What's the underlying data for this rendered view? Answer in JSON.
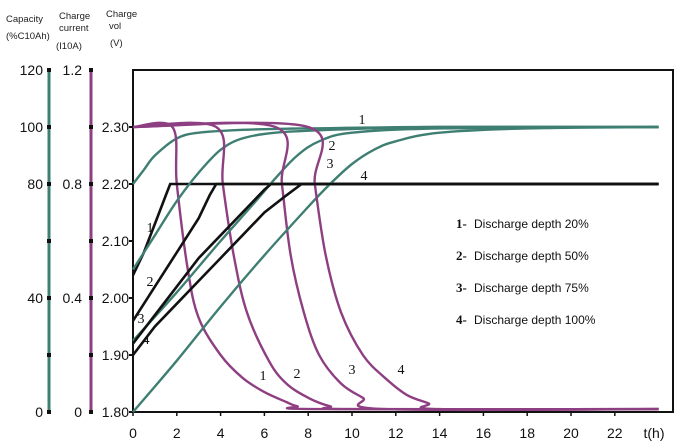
{
  "chart_data": {
    "type": "line",
    "axis_headers": {
      "capacity": [
        "Capacity",
        "(%C10Ah)"
      ],
      "current": [
        "Charge",
        "current",
        "(I10A)"
      ],
      "voltage": [
        "Charge",
        "vol",
        "(V)"
      ]
    },
    "xlabel": "t(h)",
    "x_ticks": [
      0,
      2,
      4,
      6,
      8,
      10,
      12,
      14,
      16,
      18,
      20,
      22
    ],
    "xlim": [
      0,
      24.5
    ],
    "capacity_ticks": [
      {
        "v": 0,
        "label": "0"
      },
      {
        "v": 20,
        "label": ""
      },
      {
        "v": 40,
        "label": "40"
      },
      {
        "v": 60,
        "label": ""
      },
      {
        "v": 80,
        "label": "80"
      },
      {
        "v": 100,
        "label": "100"
      },
      {
        "v": 120,
        "label": "120"
      }
    ],
    "current_ticks": [
      {
        "v": 0,
        "label": "0"
      },
      {
        "v": 0.2,
        "label": ""
      },
      {
        "v": 0.4,
        "label": "0.4"
      },
      {
        "v": 0.6,
        "label": ""
      },
      {
        "v": 0.8,
        "label": "0.8"
      },
      {
        "v": 1.0,
        "label": ""
      },
      {
        "v": 1.2,
        "label": "1.2"
      }
    ],
    "voltage_ticks": [
      {
        "v": 1.8,
        "label": "1.80"
      },
      {
        "v": 1.9,
        "label": "1.90"
      },
      {
        "v": 2.0,
        "label": "2.00"
      },
      {
        "v": 2.1,
        "label": "2.10"
      },
      {
        "v": 2.2,
        "label": "2.20"
      },
      {
        "v": 2.3,
        "label": "2.30"
      }
    ],
    "voltage_lim": [
      1.8,
      2.4
    ],
    "colors": {
      "capacity": "#3f7f73",
      "current": "#8e3f82",
      "voltage": "#111111"
    },
    "series": [
      {
        "name": "Discharge depth 20%",
        "number": "1",
        "voltage": [
          [
            0,
            2.04
          ],
          [
            0.5,
            2.08
          ],
          [
            1,
            2.13
          ],
          [
            1.5,
            2.18
          ],
          [
            1.7,
            2.2
          ],
          [
            24,
            2.2
          ]
        ],
        "current": [
          [
            0,
            1.0
          ],
          [
            1.8,
            1.0
          ],
          [
            2.0,
            0.8
          ],
          [
            2.5,
            0.5
          ],
          [
            3.0,
            0.33
          ],
          [
            4.0,
            0.2
          ],
          [
            5.0,
            0.12
          ],
          [
            6.0,
            0.07
          ],
          [
            7.0,
            0.035
          ],
          [
            7.5,
            0.02
          ],
          [
            8.5,
            0.01
          ],
          [
            24,
            0.01
          ]
        ],
        "capacity": [
          [
            0,
            80
          ],
          [
            0.5,
            85
          ],
          [
            1,
            90
          ],
          [
            2,
            96
          ],
          [
            3,
            98
          ],
          [
            5,
            99
          ],
          [
            8,
            99.5
          ],
          [
            14,
            100
          ],
          [
            24,
            100
          ]
        ]
      },
      {
        "name": "Discharge depth 50%",
        "number": "2",
        "voltage": [
          [
            0,
            1.96
          ],
          [
            1,
            2.02
          ],
          [
            2,
            2.08
          ],
          [
            3,
            2.14
          ],
          [
            3.5,
            2.18
          ],
          [
            3.8,
            2.2
          ],
          [
            24,
            2.2
          ]
        ],
        "current": [
          [
            0,
            1.0
          ],
          [
            3.8,
            1.0
          ],
          [
            4.1,
            0.8
          ],
          [
            4.6,
            0.55
          ],
          [
            5.2,
            0.35
          ],
          [
            6.2,
            0.18
          ],
          [
            7.0,
            0.1
          ],
          [
            8.0,
            0.05
          ],
          [
            9.0,
            0.02
          ],
          [
            10.0,
            0.01
          ],
          [
            24,
            0.01
          ]
        ],
        "capacity": [
          [
            0,
            50
          ],
          [
            1,
            62
          ],
          [
            2,
            74
          ],
          [
            3,
            84
          ],
          [
            4,
            92
          ],
          [
            5,
            96
          ],
          [
            6.5,
            98
          ],
          [
            9,
            99
          ],
          [
            14,
            100
          ],
          [
            24,
            100
          ]
        ]
      },
      {
        "name": "Discharge depth 75%",
        "number": "3",
        "voltage": [
          [
            0,
            1.92
          ],
          [
            1,
            1.97
          ],
          [
            2,
            2.02
          ],
          [
            3,
            2.07
          ],
          [
            4,
            2.11
          ],
          [
            5,
            2.15
          ],
          [
            6,
            2.19
          ],
          [
            6.3,
            2.2
          ],
          [
            24,
            2.2
          ]
        ],
        "current": [
          [
            0,
            1.0
          ],
          [
            6.5,
            1.0
          ],
          [
            6.8,
            0.8
          ],
          [
            7.2,
            0.55
          ],
          [
            7.8,
            0.35
          ],
          [
            8.5,
            0.2
          ],
          [
            9.5,
            0.1
          ],
          [
            10.5,
            0.05
          ],
          [
            11.5,
            0.01
          ],
          [
            24,
            0.01
          ]
        ],
        "capacity": [
          [
            0,
            25
          ],
          [
            2,
            42
          ],
          [
            4,
            60
          ],
          [
            5.5,
            73
          ],
          [
            6.5,
            82
          ],
          [
            7.5,
            90
          ],
          [
            8.5,
            95
          ],
          [
            10,
            98
          ],
          [
            14,
            99.5
          ],
          [
            24,
            100
          ]
        ]
      },
      {
        "name": "Discharge depth 100%",
        "number": "4",
        "voltage": [
          [
            0,
            1.9
          ],
          [
            1,
            1.95
          ],
          [
            2,
            1.99
          ],
          [
            3,
            2.03
          ],
          [
            4,
            2.07
          ],
          [
            5,
            2.11
          ],
          [
            6,
            2.15
          ],
          [
            7,
            2.18
          ],
          [
            7.7,
            2.2
          ],
          [
            24,
            2.2
          ]
        ],
        "current": [
          [
            0,
            1.0
          ],
          [
            8.0,
            1.0
          ],
          [
            8.3,
            0.8
          ],
          [
            8.8,
            0.55
          ],
          [
            9.5,
            0.35
          ],
          [
            10.5,
            0.2
          ],
          [
            11.5,
            0.12
          ],
          [
            12.5,
            0.06
          ],
          [
            13.5,
            0.03
          ],
          [
            14.0,
            0.01
          ],
          [
            24,
            0.01
          ]
        ],
        "capacity": [
          [
            0,
            0
          ],
          [
            2,
            18
          ],
          [
            4,
            37
          ],
          [
            6,
            55
          ],
          [
            8,
            72
          ],
          [
            9,
            80
          ],
          [
            10,
            87
          ],
          [
            11,
            92
          ],
          [
            12,
            95
          ],
          [
            14,
            98
          ],
          [
            18,
            99.5
          ],
          [
            24,
            100
          ]
        ]
      }
    ]
  }
}
